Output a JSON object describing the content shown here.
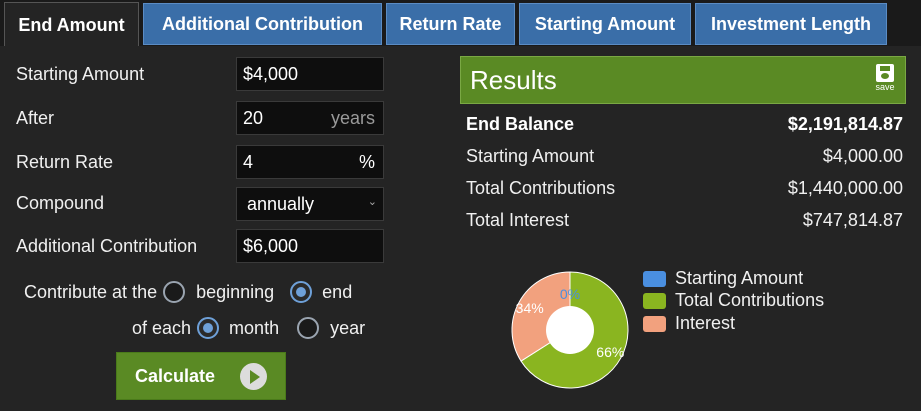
{
  "tabs": [
    {
      "label": "End Amount"
    },
    {
      "label": "Additional Contribution"
    },
    {
      "label": "Return Rate"
    },
    {
      "label": "Starting Amount"
    },
    {
      "label": "Investment Length"
    }
  ],
  "form": {
    "starting_amount": {
      "label": "Starting Amount",
      "value": "$4,000"
    },
    "after": {
      "label": "After",
      "value": "20",
      "suffix": "years"
    },
    "return_rate": {
      "label": "Return Rate",
      "value": "4",
      "suffix": "%"
    },
    "compound": {
      "label": "Compound",
      "value": "annually"
    },
    "additional_contribution": {
      "label": "Additional Contribution",
      "value": "$6,000"
    },
    "contribute_at": {
      "label": "Contribute at the",
      "options": [
        "beginning",
        "end"
      ],
      "selected": "end"
    },
    "of_each": {
      "label": "of each",
      "options": [
        "month",
        "year"
      ],
      "selected": "month"
    },
    "calculate_label": "Calculate"
  },
  "results": {
    "title": "Results",
    "save_label": "save",
    "rows": [
      {
        "label": "End Balance",
        "value": "$2,191,814.87"
      },
      {
        "label": "Starting Amount",
        "value": "$4,000.00"
      },
      {
        "label": "Total Contributions",
        "value": "$1,440,000.00"
      },
      {
        "label": "Total Interest",
        "value": "$747,814.87"
      }
    ]
  },
  "chart_data": {
    "type": "pie",
    "donut": true,
    "slices": [
      {
        "name": "Starting Amount",
        "value": 0,
        "label": "0%",
        "color": "#4a8fe0"
      },
      {
        "name": "Total Contributions",
        "value": 66,
        "label": "66%",
        "color": "#8ab520"
      },
      {
        "name": "Interest",
        "value": 34,
        "label": "34%",
        "color": "#f2a17e"
      }
    ],
    "legend": [
      "Starting Amount",
      "Total Contributions",
      "Interest"
    ]
  },
  "colors": {
    "tab_blue": "#3a6ea8",
    "accent_green": "#5a8a24",
    "radio_selected": "#6ea0d8"
  }
}
